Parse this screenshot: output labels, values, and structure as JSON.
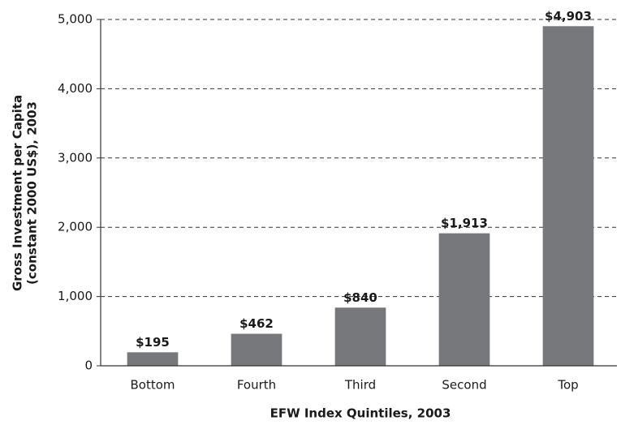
{
  "chart_data": {
    "type": "bar",
    "ylabel": [
      "Gross Investment per Capita",
      "(constant 2000 US$), 2003"
    ],
    "xlabel": "EFW Index Quintiles, 2003",
    "categories": [
      "Bottom",
      "Fourth",
      "Third",
      "Second",
      "Top"
    ],
    "values": [
      195,
      462,
      840,
      1913,
      4903
    ],
    "value_labels": [
      "$195",
      "$462",
      "$840",
      "$1,913",
      "$4,903"
    ],
    "color": "#77787b",
    "ylim": [
      0,
      5000
    ],
    "yticks": [
      0,
      {
        "value": 1000,
        "label": "1,000"
      },
      {
        "value": 2000,
        "label": "2,000"
      },
      {
        "value": 3000,
        "label": "3,000"
      },
      {
        "value": 4000,
        "label": "4,000"
      },
      {
        "value": 5000,
        "label": "5,000"
      }
    ],
    "grid": true
  }
}
